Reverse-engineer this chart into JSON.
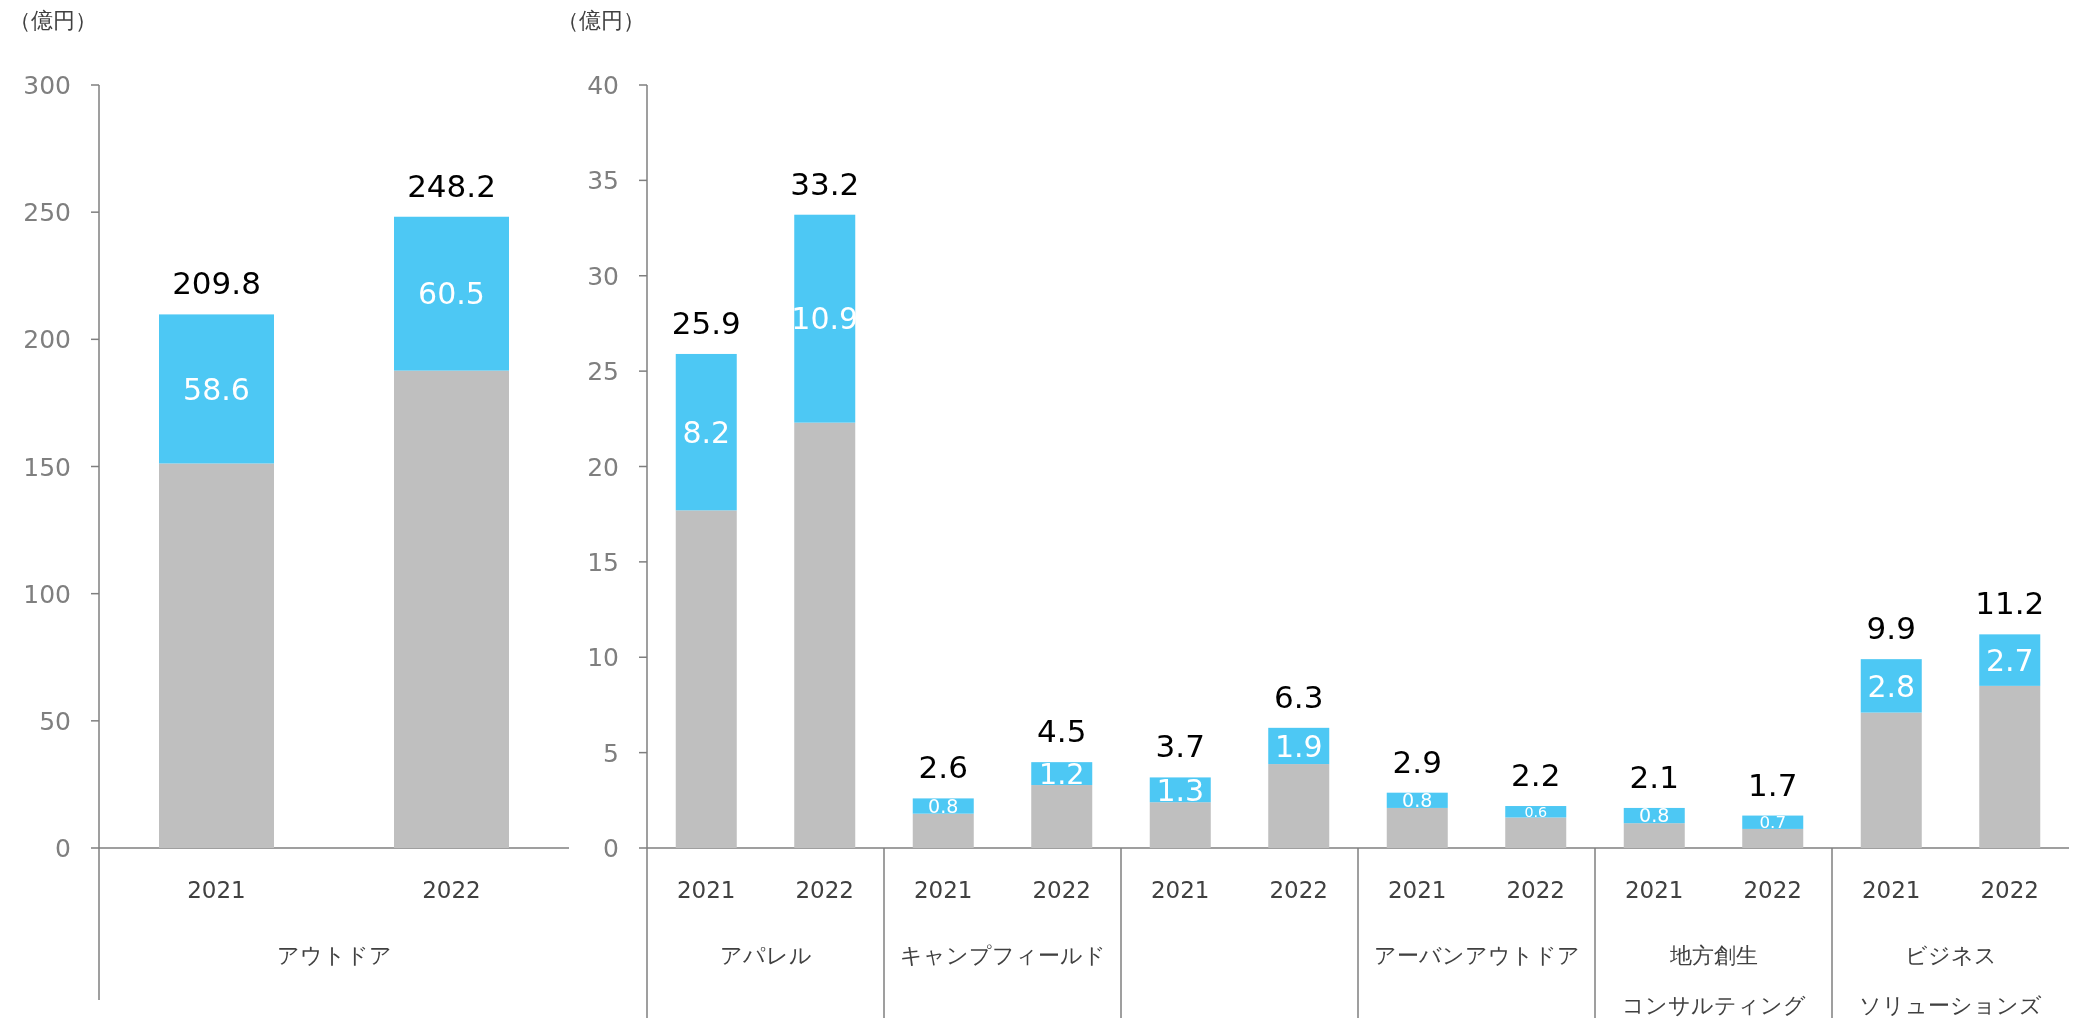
{
  "chart_data": [
    {
      "type": "bar",
      "stacked": true,
      "ylabel": "（億円）",
      "xlabel": "アウトドア",
      "categories": [
        "2021",
        "2022"
      ],
      "ylim": [
        0,
        300
      ],
      "yticks": [
        0,
        50,
        100,
        150,
        200,
        250,
        300
      ],
      "series": [
        {
          "color": "#bfbfbf",
          "values": [
            151.2,
            187.7
          ]
        },
        {
          "color": "#4dc8f4",
          "values": [
            58.6,
            60.5
          ],
          "value_labels": [
            "58.6",
            "60.5"
          ]
        }
      ],
      "totals": [
        "209.8",
        "248.2"
      ]
    },
    {
      "type": "bar",
      "stacked": true,
      "ylabel": "（億円）",
      "xlabel": "アパレル",
      "categories": [
        "2021",
        "2022"
      ],
      "ylim": [
        0,
        40
      ],
      "yticks": [
        0,
        5,
        10,
        15,
        20,
        25,
        30,
        35,
        40
      ],
      "series": [
        {
          "color": "#bfbfbf",
          "values": [
            17.7,
            22.3
          ]
        },
        {
          "color": "#4dc8f4",
          "values": [
            8.2,
            10.9
          ],
          "value_labels": [
            "8.2",
            "10.9"
          ]
        }
      ],
      "totals": [
        "25.9",
        "33.2"
      ]
    },
    {
      "type": "bar",
      "stacked": true,
      "xlabel": "キャンプフィールド",
      "categories": [
        "2021",
        "2022"
      ],
      "ylim": [
        0,
        40
      ],
      "tick_labels": "x",
      "series": [
        {
          "color": "#bfbfbf",
          "values": [
            1.8,
            3.3
          ]
        },
        {
          "color": "#4dc8f4",
          "values": [
            0.8,
            1.2
          ],
          "value_labels": [
            "0.8",
            "1.2"
          ]
        }
      ],
      "totals": [
        "2.6",
        "4.5"
      ]
    },
    {
      "type": "bar",
      "stacked": true,
      "categories": [
        "2021",
        "2022"
      ],
      "ylim": [
        0,
        40
      ],
      "tick_labels": "x",
      "series": [
        {
          "color": "#bfbfbf",
          "values": [
            2.4,
            4.4
          ]
        },
        {
          "color": "#4dc8f4",
          "values": [
            1.3,
            1.9
          ],
          "value_labels": [
            "1.3",
            "1.9"
          ]
        }
      ],
      "totals": [
        "3.7",
        "6.3"
      ]
    },
    {
      "type": "bar",
      "stacked": true,
      "xlabel": "アーバンアウトドア",
      "categories": [
        "2021",
        "2022"
      ],
      "ylim": [
        0,
        40
      ],
      "tick_labels": "x",
      "series": [
        {
          "color": "#bfbfbf",
          "values": [
            2.1,
            1.6
          ]
        },
        {
          "color": "#4dc8f4",
          "values": [
            0.8,
            0.6
          ],
          "value_labels": [
            "0.8",
            "0.6"
          ]
        }
      ],
      "totals": [
        "2.9",
        "2.2"
      ]
    },
    {
      "type": "bar",
      "stacked": true,
      "xlabel": "地方創生",
      "annotations": [
        "コンサルティング"
      ],
      "categories": [
        "2021",
        "2022"
      ],
      "ylim": [
        0,
        40
      ],
      "tick_labels": "x",
      "series": [
        {
          "color": "#bfbfbf",
          "values": [
            1.3,
            1.0
          ]
        },
        {
          "color": "#4dc8f4",
          "values": [
            0.8,
            0.7
          ],
          "value_labels": [
            "0.8",
            "0.7"
          ]
        }
      ],
      "totals": [
        "2.1",
        "1.7"
      ]
    },
    {
      "type": "bar",
      "stacked": true,
      "xlabel": "ビジネス",
      "annotations": [
        "ソリューションズ"
      ],
      "categories": [
        "2021",
        "2022"
      ],
      "ylim": [
        0,
        40
      ],
      "tick_labels": "x",
      "series": [
        {
          "color": "#bfbfbf",
          "values": [
            7.1,
            8.5
          ]
        },
        {
          "color": "#4dc8f4",
          "values": [
            2.8,
            2.7
          ],
          "value_labels": [
            "2.8",
            "2.7"
          ]
        }
      ],
      "totals": [
        "9.9",
        "11.2"
      ]
    }
  ]
}
